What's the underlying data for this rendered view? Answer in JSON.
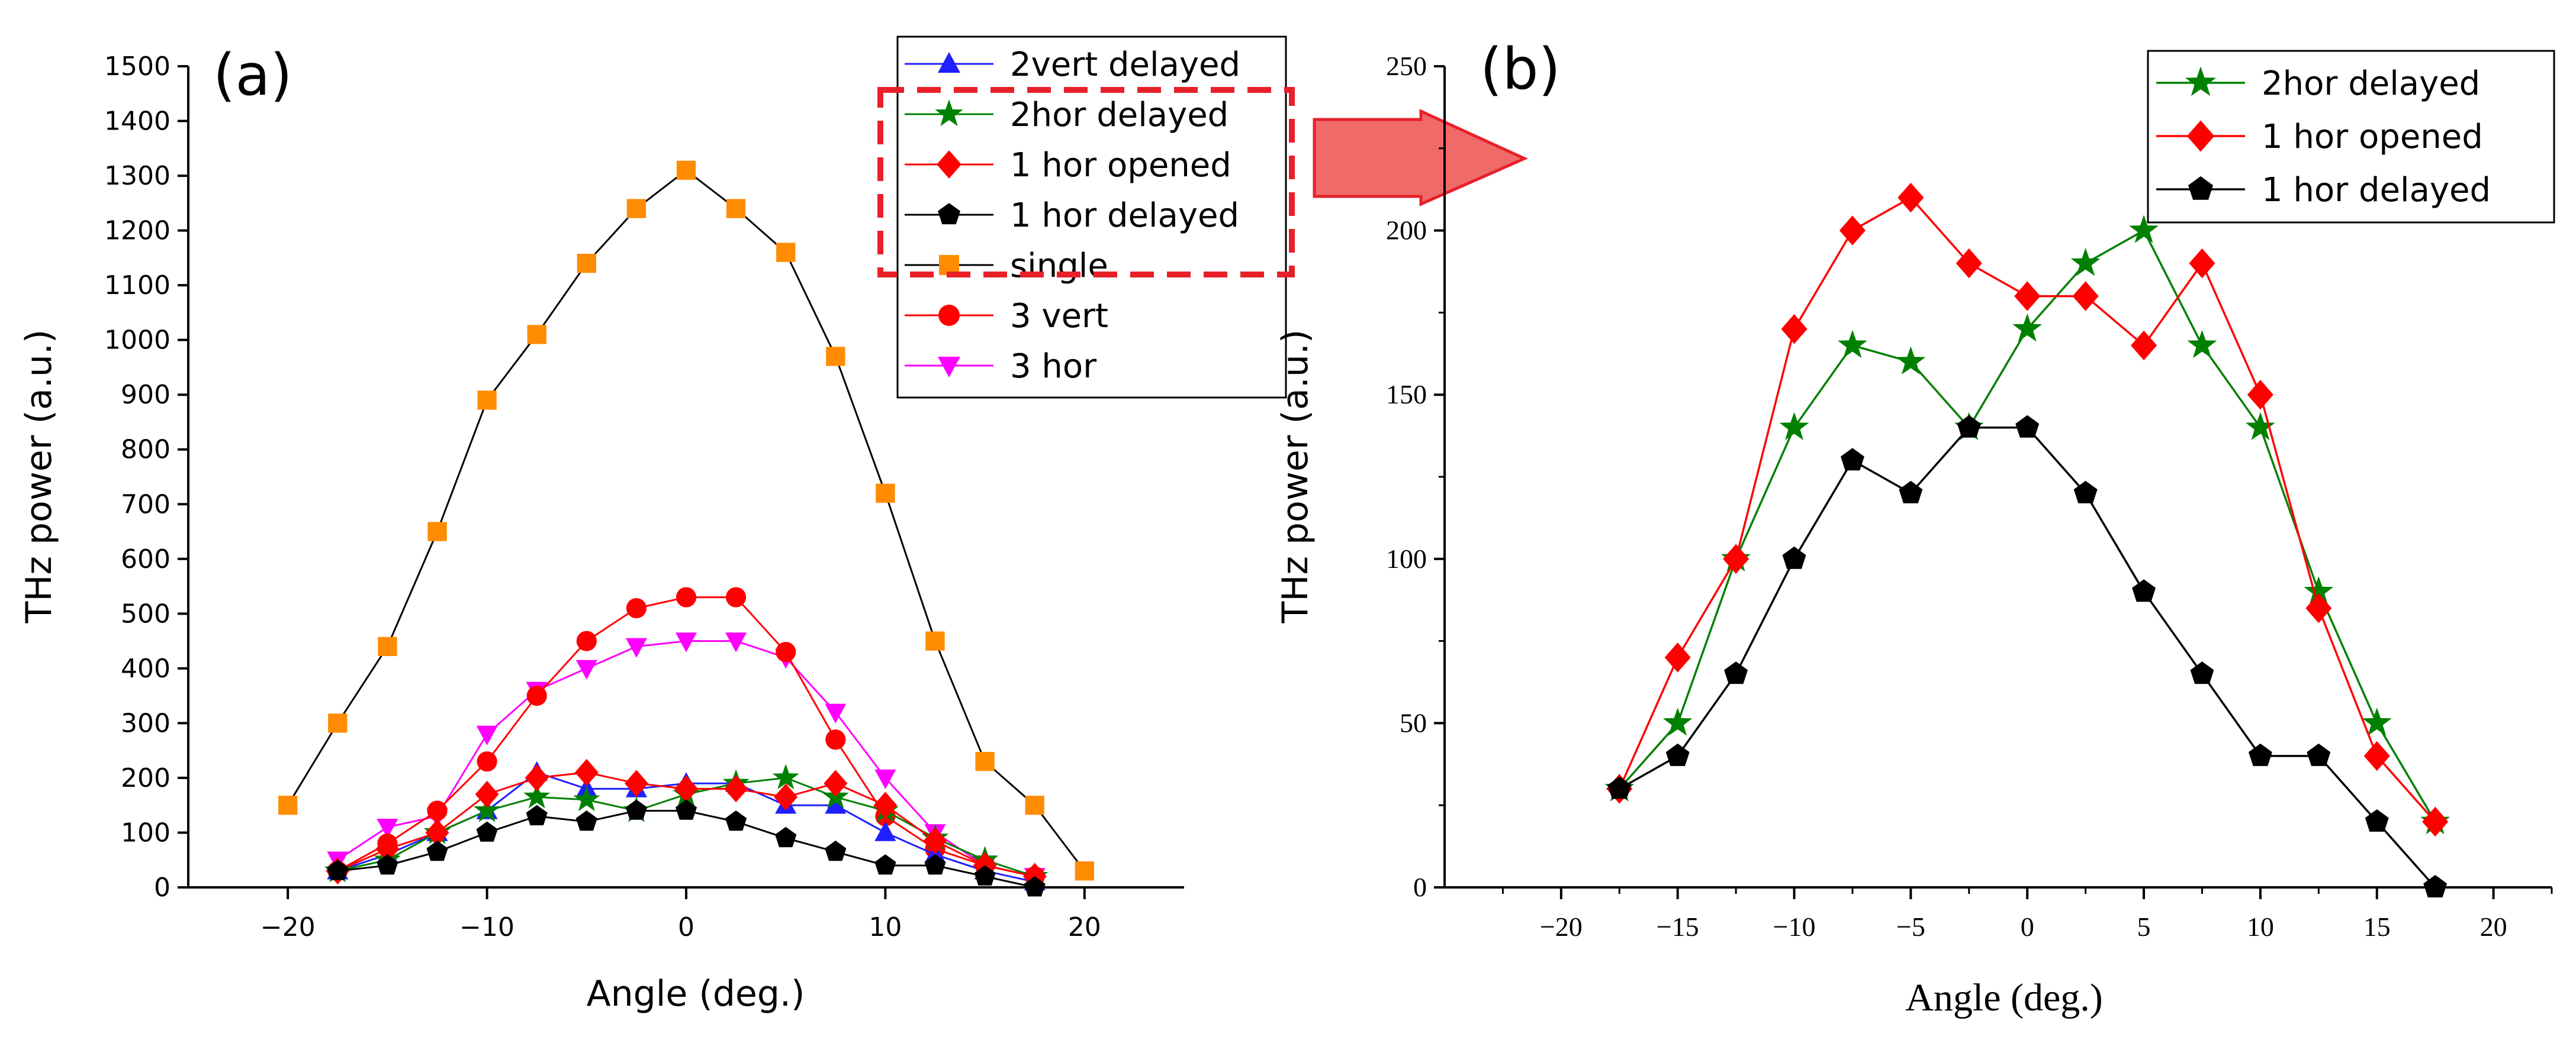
{
  "chart_data": [
    {
      "type": "line",
      "panel_label": "(a)",
      "xlabel": "Angle (deg.)",
      "ylabel": "THz power (a.u.)",
      "xlim": [
        -25,
        25
      ],
      "ylim": [
        0,
        1500
      ],
      "xticks": [
        -20,
        -10,
        0,
        10,
        20
      ],
      "yticks": [
        0,
        100,
        200,
        300,
        400,
        500,
        600,
        700,
        800,
        900,
        1000,
        1100,
        1200,
        1300,
        1400,
        1500
      ],
      "legend_position": "top-right",
      "series": [
        {
          "name": "2vert delayed",
          "color": "#1f1fff",
          "line_color": "#1f1fff",
          "marker": "triangle-up",
          "x": [
            -17.5,
            -15,
            -12.5,
            -10,
            -7.5,
            -5,
            -2.5,
            0,
            2.5,
            5,
            7.5,
            10,
            12.5,
            15,
            17.5
          ],
          "y": [
            30,
            60,
            100,
            140,
            210,
            180,
            180,
            190,
            190,
            150,
            150,
            100,
            60,
            30,
            10
          ]
        },
        {
          "name": "2hor delayed",
          "color": "#008000",
          "line_color": "#008000",
          "marker": "star",
          "x": [
            -17.5,
            -15,
            -12.5,
            -10,
            -7.5,
            -5,
            -2.5,
            0,
            2.5,
            5,
            7.5,
            10,
            12.5,
            15,
            17.5
          ],
          "y": [
            30,
            50,
            100,
            140,
            165,
            160,
            140,
            170,
            190,
            200,
            165,
            140,
            90,
            50,
            20
          ]
        },
        {
          "name": "1 hor opened",
          "color": "#ff0000",
          "line_color": "#ff0000",
          "marker": "diamond",
          "x": [
            -17.5,
            -15,
            -12.5,
            -10,
            -7.5,
            -5,
            -2.5,
            0,
            2.5,
            5,
            7.5,
            10,
            12.5,
            15,
            17.5
          ],
          "y": [
            30,
            70,
            100,
            170,
            200,
            210,
            190,
            180,
            180,
            165,
            190,
            150,
            85,
            40,
            20
          ]
        },
        {
          "name": "1 hor delayed",
          "color": "#000000",
          "line_color": "#000000",
          "marker": "pentagon",
          "x": [
            -17.5,
            -15,
            -12.5,
            -10,
            -7.5,
            -5,
            -2.5,
            0,
            2.5,
            5,
            7.5,
            10,
            12.5,
            15,
            17.5
          ],
          "y": [
            30,
            40,
            65,
            100,
            130,
            120,
            140,
            140,
            120,
            90,
            65,
            40,
            40,
            20,
            0
          ]
        },
        {
          "name": "single",
          "color": "#ff8c00",
          "line_color": "#000000",
          "marker": "square",
          "x": [
            -20,
            -17.5,
            -15,
            -12.5,
            -10,
            -7.5,
            -5,
            -2.5,
            0,
            2.5,
            5,
            7.5,
            10,
            12.5,
            15,
            17.5,
            20
          ],
          "y": [
            150,
            300,
            440,
            650,
            890,
            1010,
            1140,
            1240,
            1310,
            1240,
            1160,
            970,
            720,
            450,
            230,
            150,
            30
          ]
        },
        {
          "name": "3 vert",
          "color": "#ff0000",
          "line_color": "#ff0000",
          "marker": "circle",
          "x": [
            -17.5,
            -15,
            -12.5,
            -10,
            -7.5,
            -5,
            -2.5,
            0,
            2.5,
            5,
            7.5,
            10,
            12.5,
            15,
            17.5
          ],
          "y": [
            30,
            80,
            140,
            230,
            350,
            450,
            510,
            530,
            530,
            430,
            270,
            130,
            70,
            40,
            20
          ]
        },
        {
          "name": "3 hor",
          "color": "#ff00ff",
          "line_color": "#ff00ff",
          "marker": "triangle-down",
          "x": [
            -17.5,
            -15,
            -12.5,
            -10,
            -7.5,
            -5,
            -2.5,
            0,
            2.5,
            5,
            7.5,
            10,
            12.5,
            15,
            17.5
          ],
          "y": [
            50,
            110,
            130,
            280,
            360,
            400,
            440,
            450,
            450,
            420,
            320,
            200,
            100,
            40,
            20
          ]
        }
      ]
    },
    {
      "type": "line",
      "panel_label": "(b)",
      "xlabel": "Angle (deg.)",
      "ylabel": "THz power (a.u.)",
      "xlim": [
        -25,
        22.5
      ],
      "ylim": [
        0,
        250
      ],
      "xticks": [
        -20,
        -15,
        -10,
        -5,
        0,
        5,
        10,
        15,
        20
      ],
      "yticks": [
        0,
        50,
        100,
        150,
        200,
        250
      ],
      "legend_position": "top-right",
      "series": [
        {
          "name": "2hor delayed",
          "color": "#008000",
          "line_color": "#008000",
          "marker": "star",
          "x": [
            -17.5,
            -15,
            -12.5,
            -10,
            -7.5,
            -5,
            -2.5,
            0,
            2.5,
            5,
            7.5,
            10,
            12.5,
            15,
            17.5
          ],
          "y": [
            30,
            50,
            100,
            140,
            165,
            160,
            140,
            170,
            190,
            200,
            165,
            140,
            90,
            50,
            20
          ]
        },
        {
          "name": "1 hor opened",
          "color": "#ff0000",
          "line_color": "#ff0000",
          "marker": "diamond",
          "x": [
            -17.5,
            -15,
            -12.5,
            -10,
            -7.5,
            -5,
            -2.5,
            0,
            2.5,
            5,
            7.5,
            10,
            12.5,
            15,
            17.5
          ],
          "y": [
            30,
            70,
            100,
            170,
            200,
            210,
            190,
            180,
            180,
            165,
            190,
            150,
            85,
            40,
            20
          ]
        },
        {
          "name": "1 hor delayed",
          "color": "#000000",
          "line_color": "#000000",
          "marker": "pentagon",
          "x": [
            -17.5,
            -15,
            -12.5,
            -10,
            -7.5,
            -5,
            -2.5,
            0,
            2.5,
            5,
            7.5,
            10,
            12.5,
            15,
            17.5
          ],
          "y": [
            30,
            40,
            65,
            100,
            130,
            120,
            140,
            140,
            120,
            90,
            65,
            40,
            40,
            20,
            0
          ]
        }
      ]
    }
  ],
  "annotations": {
    "highlight_color": "#e8202a",
    "arrow_fill": "#f06a6a",
    "arrow_stroke": "#e8202a"
  }
}
